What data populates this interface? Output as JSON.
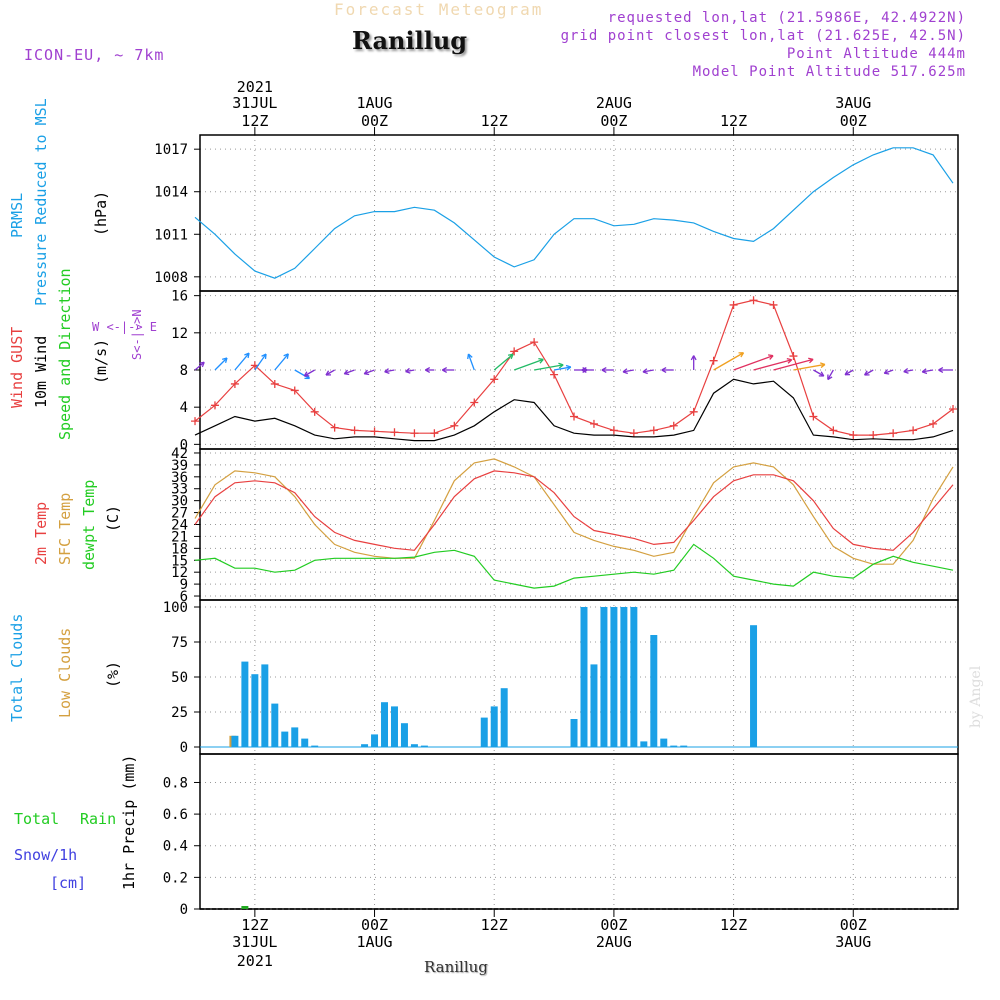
{
  "header": {
    "title_faint": "Forecast Meteogram",
    "station": "Ranillug",
    "model": "ICON-EU, ~ 7km",
    "requested": "requested lon,lat (21.5986E, 42.4922N)",
    "gridpoint": "grid point closest lon,lat (21.625E, 42.5N)",
    "point_alt": "Point Altitude 444m",
    "model_alt": "Model Point Altitude 517.625m"
  },
  "footer": {
    "station": "Ranillug",
    "credit": "by Angel"
  },
  "time_axis": {
    "top": [
      {
        "l1": "2021",
        "l2": "31JUL",
        "l3": "12Z",
        "h": 12
      },
      {
        "l1": "",
        "l2": "1AUG",
        "l3": "00Z",
        "h": 24
      },
      {
        "l1": "",
        "l2": "",
        "l3": "12Z",
        "h": 36
      },
      {
        "l1": "",
        "l2": "2AUG",
        "l3": "00Z",
        "h": 48
      },
      {
        "l1": "",
        "l2": "",
        "l3": "12Z",
        "h": 60
      },
      {
        "l1": "",
        "l2": "3AUG",
        "l3": "00Z",
        "h": 72
      }
    ],
    "bottom": [
      {
        "l1": "12Z",
        "l2": "31JUL",
        "l3": "2021",
        "h": 12
      },
      {
        "l1": "00Z",
        "l2": "1AUG",
        "l3": "",
        "h": 24
      },
      {
        "l1": "12Z",
        "l2": "",
        "l3": "",
        "h": 36
      },
      {
        "l1": "00Z",
        "l2": "2AUG",
        "l3": "",
        "h": 48
      },
      {
        "l1": "12Z",
        "l2": "",
        "l3": "",
        "h": 60
      },
      {
        "l1": "00Z",
        "l2": "3AUG",
        "l3": "",
        "h": 72
      }
    ],
    "start_hour": 6.5,
    "end_hour": 82.5
  },
  "labels": {
    "p1": [
      "PRMSL",
      "Pressure Reduced to MSL",
      "(hPa)"
    ],
    "p2": [
      "Wind GUST",
      "10m Wind",
      "Speed and Direction",
      "(m/s)"
    ],
    "p2_compass": [
      "W <-|-> E",
      "S<-|->N"
    ],
    "p3": [
      "2m Temp",
      "SFC Temp",
      "dewpt Temp",
      "(C)"
    ],
    "p4": [
      "Total Clouds",
      "Low Clouds",
      "(%)"
    ],
    "p5": [
      "Total",
      "Rain",
      "Snow/1h",
      "[cm]",
      "1hr Precip (mm)"
    ]
  },
  "colors": {
    "pressure": "#1aa0e6",
    "gust": "#e84040",
    "wind": "#000000",
    "t2m": "#e84040",
    "tsfc": "#d4a040",
    "dewpt": "#22cc22",
    "cloud": "#1aa0e6",
    "lowcloud": "#d4a040",
    "rain": "#22aa22",
    "snow": "#4040e0"
  },
  "chart_data": [
    {
      "type": "line",
      "title": "PRMSL Pressure Reduced to MSL",
      "ylabel": "hPa",
      "ylim": [
        1007,
        1018
      ],
      "yticks": [
        1008,
        1011,
        1014,
        1017
      ],
      "series": [
        {
          "name": "PRMSL",
          "x": [
            6,
            8,
            10,
            12,
            14,
            16,
            18,
            20,
            22,
            24,
            26,
            28,
            30,
            32,
            34,
            36,
            38,
            40,
            42,
            44,
            46,
            48,
            50,
            52,
            54,
            56,
            58,
            60,
            62,
            64,
            66,
            68,
            70,
            72,
            74,
            76,
            78,
            80,
            82
          ],
          "values": [
            1012.2,
            1011.0,
            1009.6,
            1008.4,
            1007.9,
            1008.6,
            1010.0,
            1011.4,
            1012.3,
            1012.6,
            1012.6,
            1012.9,
            1012.7,
            1011.8,
            1010.6,
            1009.4,
            1008.7,
            1009.2,
            1011.0,
            1012.1,
            1012.1,
            1011.6,
            1011.7,
            1012.1,
            1012.0,
            1011.8,
            1011.2,
            1010.7,
            1010.5,
            1011.4,
            1012.7,
            1014.0,
            1015.0,
            1015.9,
            1016.6,
            1017.1,
            1017.1,
            1016.6,
            1014.6
          ]
        }
      ]
    },
    {
      "type": "line",
      "title": "Wind GUST / 10m Wind",
      "ylabel": "m/s",
      "ylim": [
        -0.5,
        16.5
      ],
      "yticks": [
        0,
        4,
        8,
        12,
        16
      ],
      "series": [
        {
          "name": "Wind GUST",
          "x": [
            6,
            8,
            10,
            12,
            14,
            16,
            18,
            20,
            22,
            24,
            26,
            28,
            30,
            32,
            34,
            36,
            38,
            40,
            42,
            44,
            46,
            48,
            50,
            52,
            54,
            56,
            58,
            60,
            62,
            64,
            66,
            68,
            70,
            72,
            74,
            76,
            78,
            80,
            82
          ],
          "values": [
            2.5,
            4.2,
            6.5,
            8.5,
            6.5,
            5.8,
            3.5,
            1.8,
            1.5,
            1.4,
            1.3,
            1.2,
            1.2,
            2.0,
            4.5,
            7.0,
            10.0,
            11.0,
            7.5,
            3.0,
            2.2,
            1.5,
            1.2,
            1.5,
            2.0,
            3.5,
            9.0,
            15.0,
            15.5,
            15.0,
            9.5,
            3.0,
            1.5,
            1.0,
            1.0,
            1.2,
            1.5,
            2.2,
            3.8
          ]
        },
        {
          "name": "10m Wind",
          "x": [
            6,
            8,
            10,
            12,
            14,
            16,
            18,
            20,
            22,
            24,
            26,
            28,
            30,
            32,
            34,
            36,
            38,
            40,
            42,
            44,
            46,
            48,
            50,
            52,
            54,
            56,
            58,
            60,
            62,
            64,
            66,
            68,
            70,
            72,
            74,
            76,
            78,
            80,
            82
          ],
          "values": [
            1.0,
            2.0,
            3.0,
            2.5,
            2.8,
            2.0,
            1.0,
            0.6,
            0.8,
            0.8,
            0.6,
            0.4,
            0.4,
            1.0,
            2.0,
            3.5,
            4.8,
            4.5,
            2.0,
            1.2,
            1.0,
            1.0,
            0.8,
            0.8,
            1.0,
            1.5,
            5.5,
            7.0,
            6.5,
            6.8,
            5.0,
            1.0,
            0.8,
            0.5,
            0.6,
            0.5,
            0.5,
            0.8,
            1.5
          ]
        }
      ]
    },
    {
      "type": "line",
      "title": "2m Temp / SFC Temp / dewpt Temp",
      "ylabel": "C",
      "ylim": [
        5,
        43
      ],
      "yticks": [
        6,
        9,
        12,
        15,
        18,
        21,
        24,
        27,
        30,
        33,
        36,
        39,
        42
      ],
      "series": [
        {
          "name": "2m Temp",
          "x": [
            6,
            8,
            10,
            12,
            14,
            16,
            18,
            20,
            22,
            24,
            26,
            28,
            30,
            32,
            34,
            36,
            38,
            40,
            42,
            44,
            46,
            48,
            50,
            52,
            54,
            56,
            58,
            60,
            62,
            64,
            66,
            68,
            70,
            72,
            74,
            76,
            78,
            80,
            82
          ],
          "values": [
            24.0,
            31.0,
            34.5,
            35.0,
            34.5,
            32.0,
            26.0,
            22.0,
            20.0,
            19.0,
            18.0,
            17.5,
            24.0,
            31.0,
            35.5,
            37.5,
            37.0,
            36.0,
            32.0,
            26.0,
            22.5,
            21.5,
            20.5,
            19.0,
            19.5,
            25.0,
            31.0,
            35.0,
            36.5,
            36.5,
            35.0,
            30.0,
            23.0,
            19.0,
            18.0,
            17.5,
            22.0,
            28.0,
            34.0
          ]
        },
        {
          "name": "SFC Temp",
          "x": [
            6,
            8,
            10,
            12,
            14,
            16,
            18,
            20,
            22,
            24,
            26,
            28,
            30,
            32,
            34,
            36,
            38,
            40,
            42,
            44,
            46,
            48,
            50,
            52,
            54,
            56,
            58,
            60,
            62,
            64,
            66,
            68,
            70,
            72,
            74,
            76,
            78,
            80,
            82
          ],
          "values": [
            25.5,
            34.0,
            37.5,
            37.0,
            36.0,
            31.0,
            24.0,
            19.0,
            17.0,
            16.0,
            15.5,
            15.5,
            25.0,
            35.0,
            39.5,
            40.5,
            38.5,
            36.0,
            29.0,
            22.0,
            20.0,
            18.5,
            17.5,
            16.0,
            17.0,
            26.0,
            34.5,
            38.5,
            39.5,
            38.5,
            34.0,
            26.0,
            18.5,
            15.5,
            14.0,
            14.0,
            20.0,
            30.5,
            38.5
          ]
        },
        {
          "name": "dewpt Temp",
          "x": [
            6,
            8,
            10,
            12,
            14,
            16,
            18,
            20,
            22,
            24,
            26,
            28,
            30,
            32,
            34,
            36,
            38,
            40,
            42,
            44,
            46,
            48,
            50,
            52,
            54,
            56,
            58,
            60,
            62,
            64,
            66,
            68,
            70,
            72,
            74,
            76,
            78,
            80,
            82
          ],
          "values": [
            15.0,
            15.5,
            13.0,
            13.0,
            12.0,
            12.5,
            15.0,
            15.5,
            15.5,
            15.5,
            15.5,
            15.8,
            17.0,
            17.5,
            16.0,
            10.0,
            9.0,
            8.0,
            8.5,
            10.5,
            11.0,
            11.5,
            12.0,
            11.5,
            12.5,
            19.0,
            15.5,
            11.0,
            10.0,
            9.0,
            8.5,
            12.0,
            11.0,
            10.5,
            14.0,
            16.0,
            14.5,
            13.5,
            12.5
          ]
        }
      ]
    },
    {
      "type": "bar",
      "title": "Total Clouds / Low Clouds",
      "ylabel": "%",
      "ylim": [
        -5,
        105
      ],
      "yticks": [
        0,
        25,
        50,
        75,
        100
      ],
      "series": [
        {
          "name": "Total Clouds",
          "x": [
            10,
            11,
            12,
            13,
            14,
            15,
            16,
            17,
            18,
            23,
            24,
            25,
            26,
            27,
            28,
            29,
            35,
            36,
            37,
            44,
            45,
            46,
            47,
            48,
            49,
            50,
            51,
            52,
            53,
            54,
            55,
            62
          ],
          "values": [
            8,
            61,
            52,
            59,
            31,
            11,
            14,
            6,
            1,
            2,
            9,
            32,
            29,
            17,
            2,
            1,
            21,
            29,
            42,
            20,
            100,
            59,
            100,
            100,
            100,
            100,
            4,
            80,
            6,
            1,
            1,
            87
          ]
        },
        {
          "name": "Low Clouds",
          "x": [
            10
          ],
          "values": [
            8
          ]
        }
      ]
    },
    {
      "type": "bar",
      "title": "1hr Precip",
      "ylabel": "mm",
      "ylim": [
        0,
        0.98
      ],
      "yticks": [
        0,
        0.2,
        0.4,
        0.6,
        0.8
      ],
      "series": [
        {
          "name": "Total Rain",
          "x": [
            11
          ],
          "values": [
            0.01
          ]
        },
        {
          "name": "Snow/1h",
          "x": [],
          "values": []
        }
      ]
    }
  ],
  "wind_vectors": {
    "note": "10m wind direction per hour, degrees (meteorological, from)",
    "x": [
      6,
      8,
      10,
      12,
      14,
      16,
      18,
      20,
      22,
      24,
      26,
      28,
      30,
      32,
      34,
      36,
      38,
      40,
      42,
      44,
      46,
      48,
      50,
      52,
      54,
      56,
      58,
      60,
      62,
      64,
      66,
      68,
      70,
      72,
      74,
      76,
      78,
      80,
      82
    ],
    "dir_deg": [
      230,
      225,
      220,
      215,
      220,
      300,
      60,
      60,
      70,
      70,
      80,
      80,
      90,
      90,
      160,
      230,
      250,
      260,
      260,
      270,
      90,
      90,
      80,
      80,
      90,
      180,
      240,
      250,
      255,
      255,
      260,
      300,
      30,
      60,
      60,
      70,
      80,
      80,
      90
    ],
    "speed": [
      1.0,
      2.0,
      3.0,
      2.5,
      2.8,
      2.0,
      1.0,
      0.6,
      0.8,
      0.8,
      0.6,
      0.4,
      0.4,
      1.0,
      2.0,
      3.5,
      4.8,
      4.5,
      2.0,
      1.2,
      1.0,
      1.0,
      0.8,
      0.8,
      1.0,
      1.5,
      5.5,
      7.0,
      6.5,
      6.8,
      5.0,
      1.0,
      0.8,
      0.5,
      0.6,
      0.5,
      0.5,
      0.8,
      1.5
    ]
  }
}
